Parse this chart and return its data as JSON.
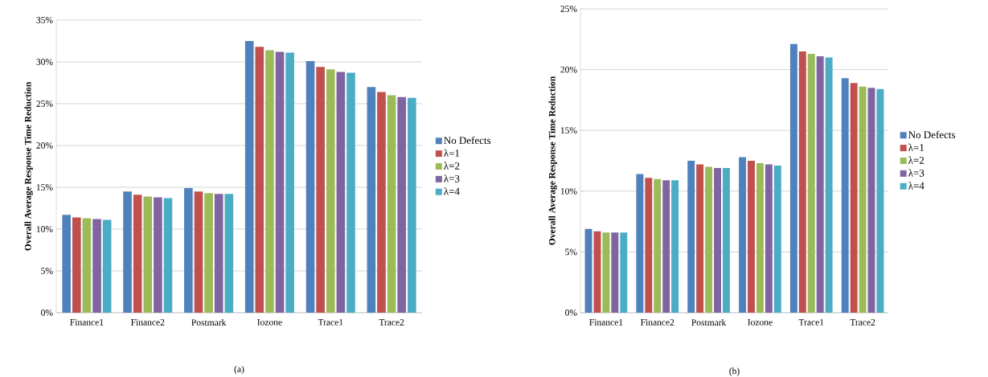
{
  "chart_data": [
    {
      "type": "bar",
      "ylabel": "Overall Average Response Time Reduction",
      "categories": [
        "Finance1",
        "Finance2",
        "Postmark",
        "Iozone",
        "Trace1",
        "Trace2"
      ],
      "series": [
        {
          "name": "No Defects",
          "color": "#4f81bd",
          "values": [
            11.7,
            14.5,
            14.9,
            32.5,
            30.1,
            27.0
          ]
        },
        {
          "name": "λ=1",
          "color": "#c0504d",
          "values": [
            11.4,
            14.1,
            14.5,
            31.8,
            29.4,
            26.4
          ]
        },
        {
          "name": "λ=2",
          "color": "#9bbb59",
          "values": [
            11.3,
            13.9,
            14.3,
            31.4,
            29.1,
            26.0
          ]
        },
        {
          "name": "λ=3",
          "color": "#8064a2",
          "values": [
            11.2,
            13.8,
            14.2,
            31.2,
            28.8,
            25.8
          ]
        },
        {
          "name": "λ=4",
          "color": "#4bacc6",
          "values": [
            11.1,
            13.7,
            14.2,
            31.1,
            28.7,
            25.7
          ]
        }
      ],
      "ylim": [
        0,
        35
      ],
      "yticks": [
        {
          "value": 0,
          "label": "0%"
        },
        {
          "value": 5,
          "label": "5%"
        },
        {
          "value": 10,
          "label": "10%"
        },
        {
          "value": 15,
          "label": "15%"
        },
        {
          "value": 20,
          "label": "20%"
        },
        {
          "value": 25,
          "label": "25%"
        },
        {
          "value": 30,
          "label": "30%"
        },
        {
          "value": 35,
          "label": "35%"
        }
      ],
      "grid": "y",
      "legend": "right",
      "annotations": [
        "(a)"
      ]
    },
    {
      "type": "bar",
      "ylabel": "Overall Average Response Time Reduction",
      "categories": [
        "Finance1",
        "Finance2",
        "Postmark",
        "Iozone",
        "Trace1",
        "Trace2"
      ],
      "series": [
        {
          "name": "No Defects",
          "color": "#4f81bd",
          "values": [
            6.9,
            11.4,
            12.5,
            12.8,
            22.1,
            19.3
          ]
        },
        {
          "name": "λ=1",
          "color": "#c0504d",
          "values": [
            6.7,
            11.1,
            12.2,
            12.5,
            21.5,
            18.9
          ]
        },
        {
          "name": "λ=2",
          "color": "#9bbb59",
          "values": [
            6.6,
            11.0,
            12.0,
            12.3,
            21.3,
            18.6
          ]
        },
        {
          "name": "λ=3",
          "color": "#8064a2",
          "values": [
            6.6,
            10.9,
            11.9,
            12.2,
            21.1,
            18.5
          ]
        },
        {
          "name": "λ=4",
          "color": "#4bacc6",
          "values": [
            6.6,
            10.9,
            11.9,
            12.1,
            21.0,
            18.4
          ]
        }
      ],
      "ylim": [
        0,
        25
      ],
      "yticks": [
        {
          "value": 0,
          "label": "0%"
        },
        {
          "value": 5,
          "label": "5%"
        },
        {
          "value": 10,
          "label": "10%"
        },
        {
          "value": 15,
          "label": "15%"
        },
        {
          "value": 20,
          "label": "20%"
        },
        {
          "value": 25,
          "label": "25%"
        }
      ],
      "grid": "y",
      "legend": "right",
      "annotations": [
        "(b)"
      ]
    }
  ]
}
